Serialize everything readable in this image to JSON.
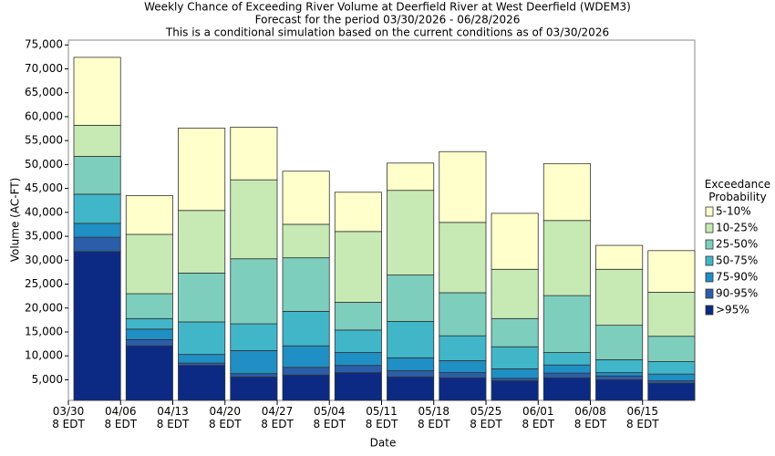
{
  "chart_data": {
    "type": "stacked_bar",
    "title": "Weekly Chance of Exceeding River Volume at Deerfield River at West Deerfield (WDEM3)",
    "subtitle": "Forecast for the period 03/30/2026 - 06/28/2026",
    "note": "This is a conditional simulation based on the current conditions as of 03/30/2026",
    "x_label": "Date",
    "y_label": "Volume (AC-FT)",
    "legend_title": "Exceedance Probability",
    "categories": [
      "03/30\n8 EDT",
      "04/06\n8 EDT",
      "04/13\n8 EDT",
      "04/20\n8 EDT",
      "04/27\n8 EDT",
      "05/04\n8 EDT",
      "05/11\n8 EDT",
      "05/18\n8 EDT",
      "05/25\n8 EDT",
      "06/01\n8 EDT",
      "06/08\n8 EDT",
      "06/15\n8 EDT"
    ],
    "series": [
      {
        "name": ">95%",
        "color": "#0c2a84",
        "values": [
          31800,
          12100,
          8000,
          5600,
          6000,
          6500,
          5600,
          5400,
          4800,
          5400,
          5000,
          4300
        ]
      },
      {
        "name": "90-95%",
        "color": "#2b5ea8",
        "values": [
          3000,
          1300,
          500,
          700,
          1600,
          1500,
          1300,
          1100,
          500,
          1000,
          800,
          500
        ]
      },
      {
        "name": "75-90%",
        "color": "#1f8fc4",
        "values": [
          2900,
          2200,
          1800,
          4800,
          4500,
          2700,
          2700,
          2500,
          2000,
          1700,
          700,
          1400
        ]
      },
      {
        "name": "50-75%",
        "color": "#41b6c8",
        "values": [
          6100,
          2200,
          6800,
          5600,
          7200,
          4700,
          7600,
          5200,
          4600,
          2600,
          2700,
          2600
        ]
      },
      {
        "name": "25-50%",
        "color": "#7ecebd",
        "values": [
          7900,
          5200,
          10200,
          13600,
          11200,
          5800,
          9700,
          9000,
          5900,
          11900,
          7200,
          5300
        ]
      },
      {
        "name": "10-25%",
        "color": "#c7e9b4",
        "values": [
          6500,
          12400,
          13100,
          16500,
          7000,
          14800,
          17700,
          14700,
          10300,
          15700,
          11700,
          9200
        ]
      },
      {
        "name": "5-10%",
        "color": "#ffffcc",
        "values": [
          14200,
          8100,
          17200,
          11000,
          11100,
          8200,
          5700,
          14800,
          11700,
          11900,
          5000,
          8700
        ]
      }
    ],
    "ylim": [
      700,
      76000
    ],
    "yticks": [
      {
        "value": 5000,
        "label": "5,000"
      },
      {
        "value": 10000,
        "label": "10,000"
      },
      {
        "value": 15000,
        "label": "15,000"
      },
      {
        "value": 20000,
        "label": "20,000"
      },
      {
        "value": 25000,
        "label": "25,000"
      },
      {
        "value": 30000,
        "label": "30,000"
      },
      {
        "value": 35000,
        "label": "35,000"
      },
      {
        "value": 40000,
        "label": "40,000"
      },
      {
        "value": 45000,
        "label": "45,000"
      },
      {
        "value": 50000,
        "label": "50,000"
      },
      {
        "value": 55000,
        "label": "55,000"
      },
      {
        "value": 60000,
        "label": "60,000"
      },
      {
        "value": 65000,
        "label": "65,000"
      },
      {
        "value": 70000,
        "label": "70,000"
      },
      {
        "value": 75000,
        "label": "75,000"
      }
    ],
    "grid": false,
    "legend": "right"
  }
}
